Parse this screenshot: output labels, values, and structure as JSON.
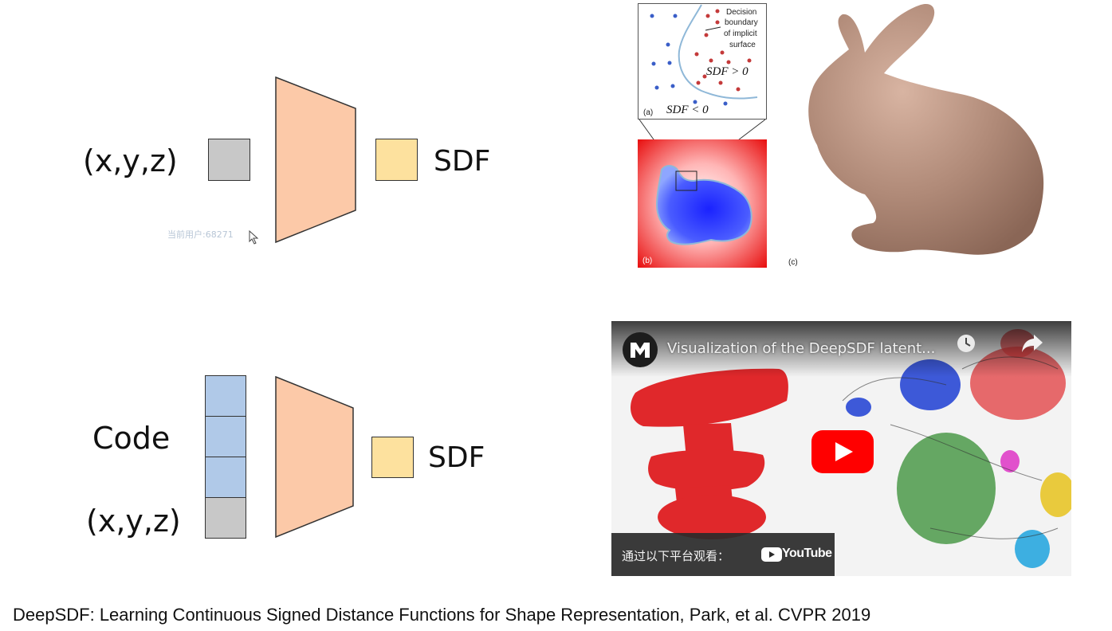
{
  "top_diagram": {
    "input_label": "(x,y,z)",
    "output_label": "SDF"
  },
  "bottom_diagram": {
    "code_label": "Code",
    "input_label": "(x,y,z)",
    "output_label": "SDF"
  },
  "watermark": "当前用户:68271",
  "panel_a": {
    "legend_line1": "Decision",
    "legend_line2": "boundary",
    "legend_line3": "of implicit",
    "legend_line4": "surface",
    "sdf_pos": "SDF > 0",
    "sdf_neg": "SDF < 0",
    "tag": "(a)"
  },
  "panel_b": {
    "tag": "(b)"
  },
  "panel_c": {
    "tag": "(c)"
  },
  "video": {
    "title": "Visualization of the DeepSDF latent...",
    "platform_prompt": "通过以下平台观看：",
    "platform_name": "YouTube",
    "colors": {
      "red": "#e0282b",
      "blue": "#2a49d6",
      "green": "#2e8a2a",
      "magenta": "#e040c8",
      "yellow": "#e8c62a",
      "cyan": "#2aa8e0",
      "youtube_red": "#ff0000"
    }
  },
  "caption": "DeepSDF: Learning Continuous Signed Distance Functions for Shape Representation, Park, et al. CVPR 2019",
  "colors": {
    "network_fill": "#fcc9a8",
    "input_gray": "#c8c8c8",
    "output_yellow": "#fde19e",
    "code_blue": "#b0c9e8",
    "bunny": "#b08a78"
  }
}
